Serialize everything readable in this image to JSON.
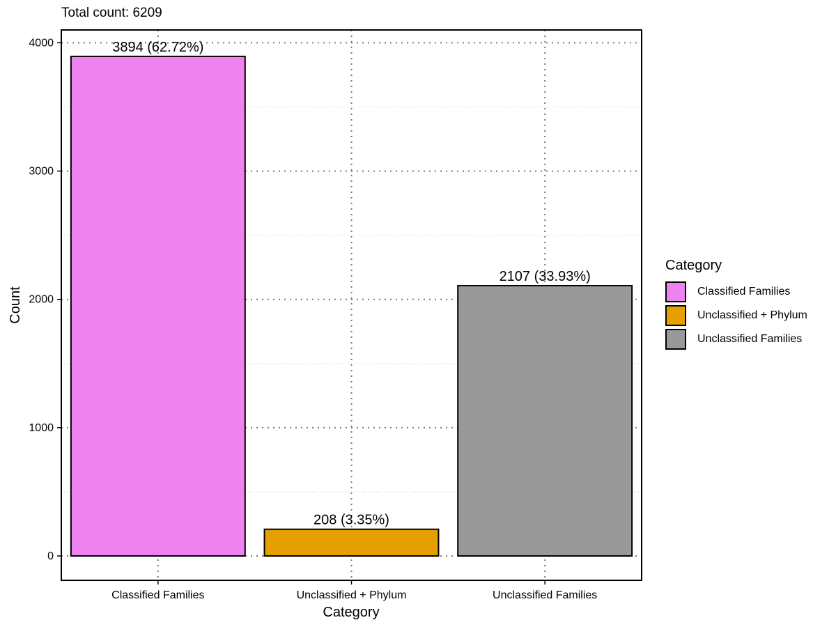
{
  "chart_data": {
    "type": "bar",
    "subtitle": "Total count: 6209",
    "categories": [
      "Classified Families",
      "Unclassified + Phylum",
      "Unclassified Families"
    ],
    "values": [
      3894,
      208,
      2107
    ],
    "data_labels": [
      "3894 (62.72%)",
      "208 (3.35%)",
      "2107 (33.93%)"
    ],
    "colors": [
      "#EE82EE",
      "#E69F00",
      "#999999"
    ],
    "xlabel": "Category",
    "ylabel": "Count",
    "ylim": [
      -190,
      4100
    ],
    "yticks": [
      0,
      1000,
      2000,
      3000,
      4000
    ],
    "grid": true,
    "legend": {
      "title": "Category",
      "placement": "right",
      "items": [
        "Classified Families",
        "Unclassified + Phylum",
        "Unclassified Families"
      ]
    }
  }
}
